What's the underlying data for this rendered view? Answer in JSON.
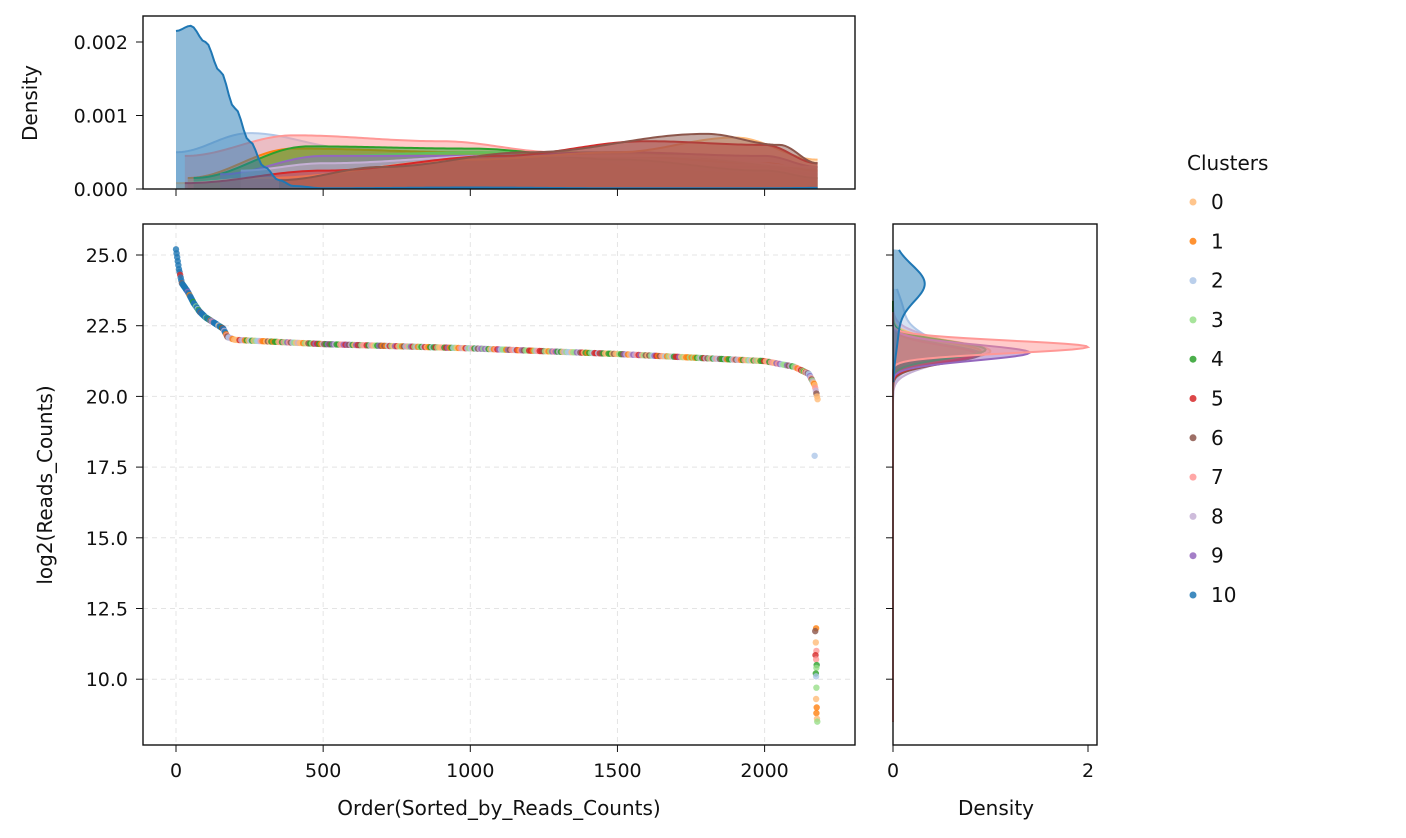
{
  "chart_data": {
    "type": "scatter",
    "subtype": "jointplot with marginal KDEs",
    "xlabel": "Order(Sorted_by_Reads_Counts)",
    "ylabel": "log2(Reads_Counts)",
    "xlim": [
      -112,
      2307
    ],
    "ylim": [
      7.67,
      26.1
    ],
    "xticks": [
      0,
      500,
      1000,
      1500,
      2000
    ],
    "xtick_labels": [
      "0",
      "500",
      "1000",
      "1500",
      "2000"
    ],
    "yticks": [
      10.0,
      12.5,
      15.0,
      17.5,
      20.0,
      22.5,
      25.0
    ],
    "ytick_labels": [
      "10.0",
      "12.5",
      "15.0",
      "17.5",
      "20.0",
      "22.5",
      "25.0"
    ],
    "grid": true,
    "n_points_approx": 2180,
    "curve_knots": [
      [
        0,
        25.2
      ],
      [
        10,
        24.5
      ],
      [
        20,
        24.0
      ],
      [
        40,
        23.7
      ],
      [
        60,
        23.3
      ],
      [
        80,
        23.0
      ],
      [
        100,
        22.8
      ],
      [
        130,
        22.6
      ],
      [
        160,
        22.4
      ],
      [
        175,
        22.1
      ],
      [
        200,
        22.0
      ],
      [
        300,
        21.95
      ],
      [
        500,
        21.85
      ],
      [
        1000,
        21.7
      ],
      [
        1500,
        21.5
      ],
      [
        2000,
        21.25
      ],
      [
        2100,
        21.05
      ],
      [
        2150,
        20.8
      ],
      [
        2170,
        20.4
      ],
      [
        2180,
        19.9
      ]
    ],
    "outliers": [
      [
        2170,
        17.9,
        2
      ],
      [
        2175,
        11.8,
        1
      ],
      [
        2172,
        11.7,
        6
      ],
      [
        2174,
        11.3,
        0
      ],
      [
        2176,
        11.0,
        7
      ],
      [
        2173,
        10.85,
        5
      ],
      [
        2175,
        10.7,
        7
      ],
      [
        2177,
        10.5,
        4
      ],
      [
        2176,
        10.4,
        3
      ],
      [
        2174,
        10.2,
        4
      ],
      [
        2175,
        10.1,
        2
      ],
      [
        2176,
        9.7,
        3
      ],
      [
        2175,
        9.3,
        0
      ],
      [
        2177,
        9.0,
        1
      ],
      [
        2176,
        8.8,
        1
      ],
      [
        2178,
        8.6,
        0
      ],
      [
        2179,
        8.5,
        3
      ]
    ],
    "legend": {
      "title": "Clusters",
      "placement": "right",
      "labels": [
        "0",
        "1",
        "2",
        "3",
        "4",
        "5",
        "6",
        "7",
        "8",
        "9",
        "10"
      ],
      "colors": [
        "#ffbb78",
        "#ff7f0e",
        "#aec7e8",
        "#98df8a",
        "#2ca02c",
        "#d62728",
        "#8c564b",
        "#ff9896",
        "#c5b0d5",
        "#9467bd",
        "#1f77b4"
      ]
    },
    "top_marginal": {
      "ylabel": "Density",
      "ylim": [
        0,
        0.00235
      ],
      "yticks": [
        0,
        0.001,
        0.002
      ],
      "ytick_labels": [
        "0.000",
        "0.001",
        "0.002"
      ],
      "value_units": "1e-4",
      "series": [
        {
          "cluster": "2",
          "x": [
            0,
            250,
            600,
            1000,
            1500,
            2000,
            2180
          ],
          "y": [
            5,
            7.6,
            5.5,
            4,
            3,
            3,
            2
          ]
        },
        {
          "cluster": "7",
          "x": [
            30,
            400,
            900,
            1300,
            1600,
            2000,
            2180
          ],
          "y": [
            4.5,
            7.3,
            6.5,
            5,
            2.5,
            2,
            1.5
          ]
        },
        {
          "cluster": "1",
          "x": [
            40,
            400,
            1000,
            1500,
            2000,
            2180
          ],
          "y": [
            1.5,
            5.5,
            5,
            4.5,
            3.5,
            2.5
          ]
        },
        {
          "cluster": "3",
          "x": [
            60,
            500,
            1000,
            1500,
            2180
          ],
          "y": [
            1,
            4.5,
            5,
            5,
            3
          ]
        },
        {
          "cluster": "4",
          "x": [
            60,
            450,
            1000,
            1500,
            2000,
            2180
          ],
          "y": [
            1.5,
            5.8,
            5.5,
            4,
            2.5,
            1.5
          ]
        },
        {
          "cluster": "9",
          "x": [
            150,
            500,
            1000,
            1500,
            2000,
            2180
          ],
          "y": [
            2,
            4.5,
            4.5,
            5,
            4.5,
            3
          ]
        },
        {
          "cluster": "8",
          "x": [
            220,
            500,
            1100,
            1700,
            2180
          ],
          "y": [
            2.5,
            3.5,
            4.5,
            4.5,
            3
          ]
        },
        {
          "cluster": "0",
          "x": [
            0,
            300,
            1000,
            1500,
            1900,
            2180
          ],
          "y": [
            0.8,
            1.5,
            4,
            5,
            7,
            4
          ]
        },
        {
          "cluster": "5",
          "x": [
            30,
            500,
            1100,
            1600,
            2000,
            2180
          ],
          "y": [
            0.8,
            2.5,
            4.5,
            6.5,
            6,
            3.5
          ]
        },
        {
          "cluster": "6",
          "x": [
            350,
            700,
            1200,
            1800,
            2050,
            2180
          ],
          "y": [
            1.2,
            3,
            5,
            7.5,
            6,
            3.5
          ]
        },
        {
          "cluster": "10",
          "x": [
            0,
            50,
            100,
            150,
            200,
            250,
            300,
            350,
            400,
            500,
            1000,
            1500,
            2000,
            2180
          ],
          "y": [
            21.5,
            22.2,
            20,
            16,
            11,
            6.5,
            3,
            1.2,
            0.4,
            0.1,
            0.2,
            0.1,
            0.1,
            0.15
          ]
        }
      ]
    },
    "right_marginal": {
      "xlabel": "Density",
      "xlim": [
        0,
        2.1
      ],
      "xticks": [
        0,
        2
      ],
      "xtick_labels": [
        "0",
        "2"
      ],
      "series": [
        {
          "cluster": "2",
          "range": [
            16,
            23.8
          ],
          "components": [
            {
              "mu": 21.7,
              "sigma": 0.5,
              "peak": 0.45
            },
            {
              "mu": 23,
              "sigma": 0.6,
              "peak": 0.1
            }
          ]
        },
        {
          "cluster": "8",
          "range": [
            8.5,
            23.2
          ],
          "components": [
            {
              "mu": 21.6,
              "sigma": 0.45,
              "peak": 0.75
            }
          ]
        },
        {
          "cluster": "0",
          "range": [
            8.5,
            23.2
          ],
          "components": [
            {
              "mu": 21.6,
              "sigma": 0.35,
              "peak": 1.0
            }
          ]
        },
        {
          "cluster": "3",
          "range": [
            8.5,
            23.3
          ],
          "components": [
            {
              "mu": 21.7,
              "sigma": 0.3,
              "peak": 0.8
            }
          ]
        },
        {
          "cluster": "1",
          "range": [
            8.5,
            23.2
          ],
          "components": [
            {
              "mu": 21.6,
              "sigma": 0.32,
              "peak": 0.9
            }
          ]
        },
        {
          "cluster": "6",
          "range": [
            8.5,
            23
          ],
          "components": [
            {
              "mu": 21.5,
              "sigma": 0.32,
              "peak": 0.9
            }
          ]
        },
        {
          "cluster": "5",
          "range": [
            8.5,
            23.2
          ],
          "components": [
            {
              "mu": 21.5,
              "sigma": 0.3,
              "peak": 0.85
            }
          ]
        },
        {
          "cluster": "4",
          "range": [
            8.5,
            23.4
          ],
          "components": [
            {
              "mu": 21.65,
              "sigma": 0.3,
              "peak": 0.95
            }
          ]
        },
        {
          "cluster": "9",
          "range": [
            8.5,
            23
          ],
          "components": [
            {
              "mu": 21.55,
              "sigma": 0.28,
              "peak": 1.4
            }
          ]
        },
        {
          "cluster": "7",
          "range": [
            8.5,
            23
          ],
          "components": [
            {
              "mu": 21.75,
              "sigma": 0.22,
              "peak": 2.0
            }
          ]
        },
        {
          "cluster": "10",
          "range": [
            20.5,
            25.2
          ],
          "components": [
            {
              "mu": 24.0,
              "sigma": 0.65,
              "peak": 0.32
            },
            {
              "mu": 22.3,
              "sigma": 0.8,
              "peak": 0.05
            }
          ]
        }
      ]
    }
  }
}
